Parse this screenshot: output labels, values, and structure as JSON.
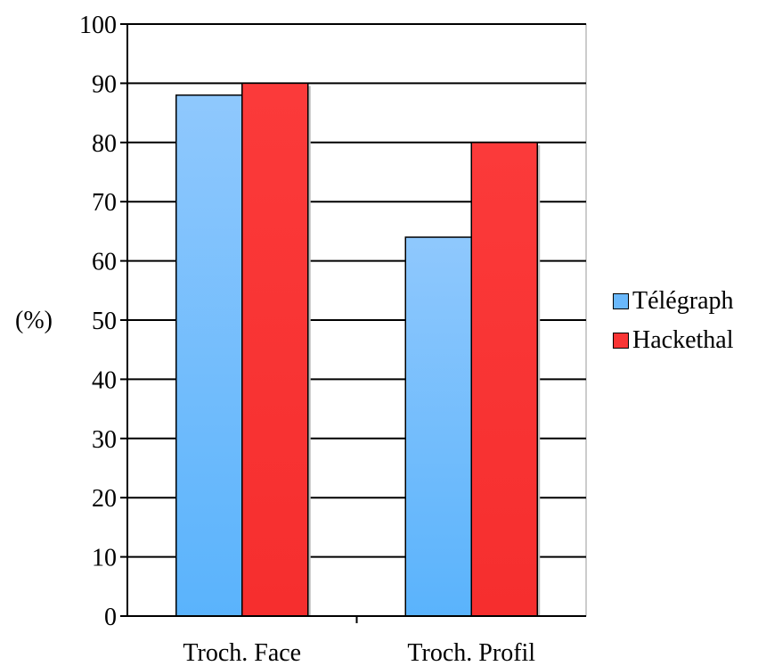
{
  "chart_data": {
    "type": "bar",
    "categories": [
      "Troch. Face",
      "Troch. Profil"
    ],
    "series": [
      {
        "name": "Télégraph",
        "values": [
          88,
          64
        ],
        "color": "#6ab8fb"
      },
      {
        "name": "Hackethal",
        "values": [
          90,
          80
        ],
        "color": "#f93535"
      }
    ],
    "ylabel": "(%)",
    "ylim": [
      0,
      100
    ],
    "yticks": [
      "0",
      "10",
      "20",
      "30",
      "40",
      "50",
      "60",
      "70",
      "80",
      "90",
      "100"
    ],
    "grid": true,
    "legend_position": "right"
  }
}
